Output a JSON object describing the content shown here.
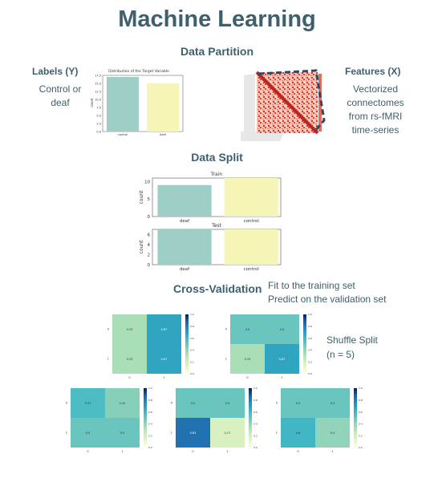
{
  "title": "Machine Learning",
  "data_partition": {
    "heading": "Data Partition",
    "labels_heading": "Labels (Y)",
    "labels_text": [
      "Control or",
      "deaf"
    ],
    "features_heading": "Features (X)",
    "features_text": [
      "Vectorized",
      "connectomes",
      "from rs-fMRI",
      "time-series"
    ],
    "target_chart": {
      "title": "Distribution of the Target Variable",
      "ylabel": "count",
      "categories": [
        "control",
        "deaf"
      ],
      "values": [
        17,
        15
      ],
      "yticks": [
        "0.0",
        "2.5",
        "5.0",
        "7.5",
        "10.0",
        "12.5",
        "15.0",
        "17.5"
      ]
    }
  },
  "data_split": {
    "heading": "Data Split",
    "charts": [
      {
        "title": "Train",
        "ylabel": "count",
        "categories": [
          "deaf",
          "control"
        ],
        "values": [
          9,
          11
        ],
        "yticks": [
          "0",
          "5",
          "10"
        ]
      },
      {
        "title": "Test",
        "ylabel": "count",
        "categories": [
          "deaf",
          "control"
        ],
        "values": [
          7,
          7
        ],
        "yticks": [
          "0",
          "2",
          "4",
          "6"
        ]
      }
    ]
  },
  "cross_validation": {
    "heading": "Cross-Validation",
    "lines": [
      "Fit to the training set",
      "Predict on the validation set"
    ],
    "shuffle_lines": [
      "Shuffle Split",
      "(n = 5)"
    ],
    "colorbar_ticks": [
      "1.0",
      "0.8",
      "0.6",
      "0.4",
      "0.2",
      "0.0"
    ],
    "heatmaps": [
      {
        "cells": [
          [
            0.33,
            0.67
          ],
          [
            0.33,
            0.67
          ]
        ],
        "labels": [
          [
            "0.33",
            "0.67"
          ],
          [
            "0.33",
            "0.67"
          ]
        ],
        "xticks": [
          "0",
          "1"
        ],
        "yticks": [
          "0",
          "1"
        ]
      },
      {
        "cells": [
          [
            0.5,
            0.5
          ],
          [
            0.33,
            0.67
          ]
        ],
        "labels": [
          [
            "0.5",
            "0.5"
          ],
          [
            "0.33",
            "0.67"
          ]
        ],
        "xticks": [
          "0",
          "1"
        ],
        "yticks": [
          "0",
          "1"
        ]
      },
      {
        "cells": [
          [
            0.57,
            0.43
          ],
          [
            0.5,
            0.5
          ]
        ],
        "labels": [
          [
            "0.57",
            "0.43"
          ],
          [
            "0.5",
            "0.5"
          ]
        ],
        "xticks": [
          "0",
          "1"
        ],
        "yticks": [
          "0",
          "1"
        ]
      },
      {
        "cells": [
          [
            0.5,
            0.5
          ],
          [
            0.83,
            0.17
          ]
        ],
        "labels": [
          [
            "0.5",
            "0.5"
          ],
          [
            "0.83",
            "0.17"
          ]
        ],
        "xticks": [
          "0",
          "1"
        ],
        "yticks": [
          "0",
          "1"
        ]
      },
      {
        "cells": [
          [
            0.5,
            0.5
          ],
          [
            0.6,
            0.4
          ]
        ],
        "labels": [
          [
            "0.5",
            "0.5"
          ],
          [
            "0.6",
            "0.4"
          ]
        ],
        "xticks": [
          "0",
          "1"
        ],
        "yticks": [
          "0",
          "1"
        ]
      }
    ]
  },
  "colors": {
    "bar_teal": "#9ecfc7",
    "bar_yellow": "#f5f5b8",
    "heading": "#3f5f6c",
    "dash": "#2b4a66"
  }
}
